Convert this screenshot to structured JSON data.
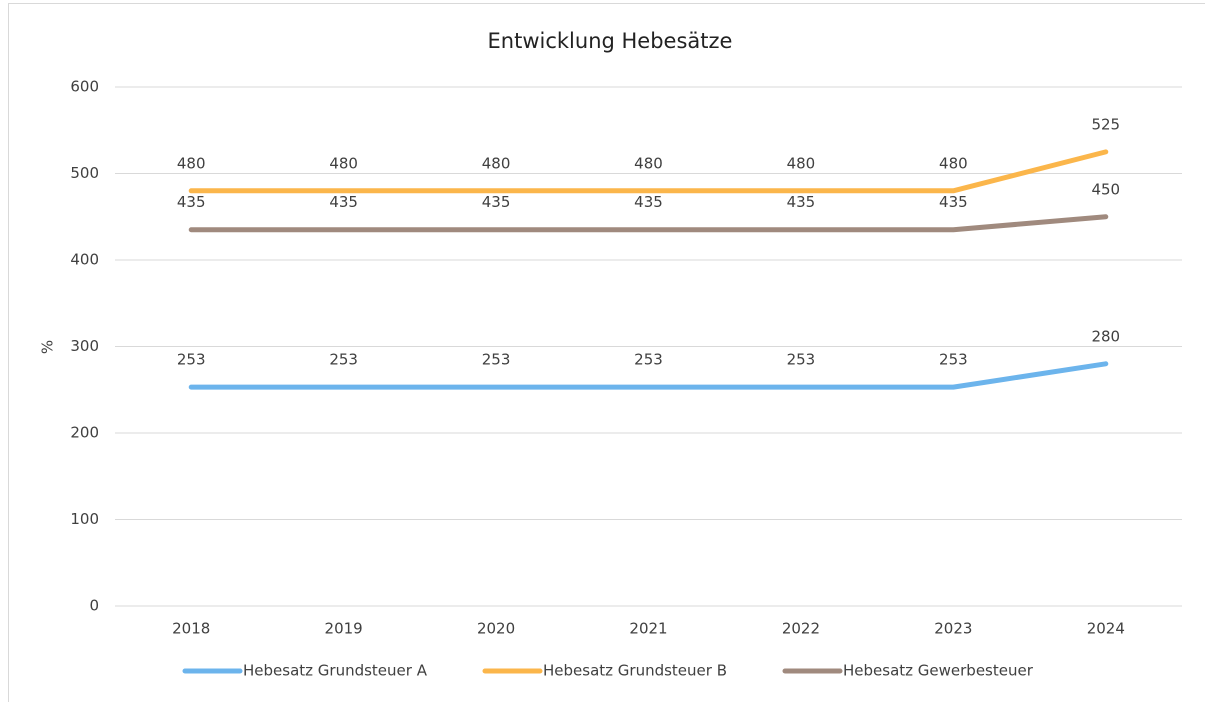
{
  "chart_data": {
    "type": "line",
    "title": "Entwicklung Hebesätze",
    "y_label": "%",
    "categories": [
      "2018",
      "2019",
      "2020",
      "2021",
      "2022",
      "2023",
      "2024"
    ],
    "series": [
      {
        "name": "Hebesatz Grundsteuer A",
        "color": "#6cb4ec",
        "values": [
          253,
          253,
          253,
          253,
          253,
          253,
          280
        ]
      },
      {
        "name": "Hebesatz Grundsteuer B",
        "color": "#fbb64b",
        "values": [
          480,
          480,
          480,
          480,
          480,
          480,
          525
        ]
      },
      {
        "name": "Hebesatz Gewerbesteuer",
        "color": "#a08a7e",
        "values": [
          435,
          435,
          435,
          435,
          435,
          435,
          450
        ]
      }
    ],
    "ylim": [
      0,
      600
    ],
    "yticks": [
      0,
      100,
      200,
      300,
      400,
      500,
      600
    ],
    "grid": true,
    "legend": "bottom"
  }
}
